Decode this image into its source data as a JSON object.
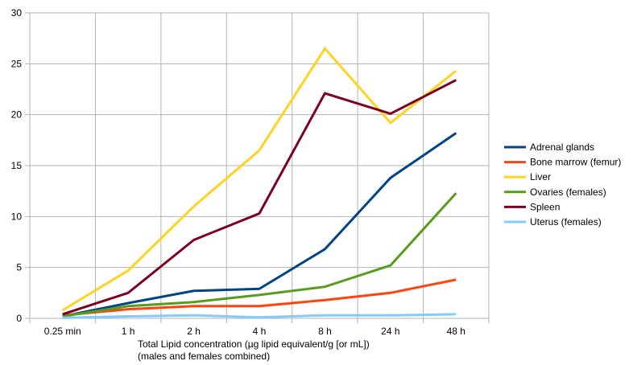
{
  "chart_data": {
    "type": "line",
    "title": "",
    "xlabel": [
      "Total Lipid concentration (µg lipid equivalent/g [or mL])",
      "(males and females combined)"
    ],
    "ylabel": "",
    "categories": [
      "0.25 min",
      "1 h",
      "2 h",
      "4 h",
      "8 h",
      "24 h",
      "48 h"
    ],
    "ylim": [
      0,
      30
    ],
    "yticks": [
      "0",
      "5",
      "10",
      "15",
      "20",
      "25",
      "30"
    ],
    "grid": true,
    "legend_position": "right",
    "series": [
      {
        "name": "Adrenal glands",
        "color": "#004586",
        "values": [
          0.2,
          1.5,
          2.7,
          2.9,
          6.8,
          13.8,
          18.2
        ]
      },
      {
        "name": "Bone marrow (femur)",
        "color": "#ff420e",
        "values": [
          0.3,
          0.9,
          1.2,
          1.2,
          1.8,
          2.5,
          3.8
        ]
      },
      {
        "name": "Liver",
        "color": "#ffd320",
        "values": [
          0.8,
          4.7,
          11.0,
          16.5,
          26.5,
          19.2,
          24.3
        ]
      },
      {
        "name": "Ovaries (females)",
        "color": "#579d1c",
        "values": [
          0.2,
          1.2,
          1.6,
          2.3,
          3.1,
          5.2,
          12.3
        ]
      },
      {
        "name": "Spleen",
        "color": "#7e0021",
        "values": [
          0.4,
          2.5,
          7.7,
          10.3,
          22.1,
          20.1,
          23.4
        ]
      },
      {
        "name": "Uterus (females)",
        "color": "#83caff",
        "values": [
          0.05,
          0.2,
          0.3,
          0.1,
          0.3,
          0.3,
          0.4
        ]
      }
    ]
  }
}
